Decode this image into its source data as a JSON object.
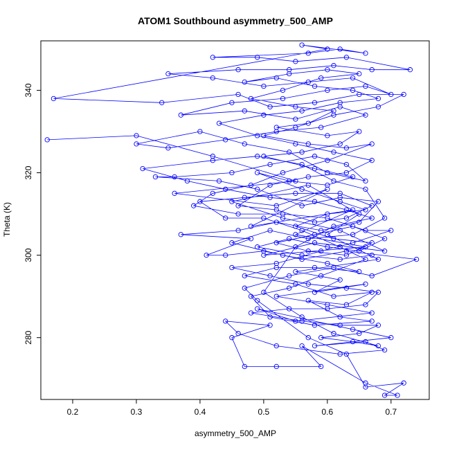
{
  "chart_data": {
    "type": "scatter",
    "style": "points connected by lines (open circles)",
    "title": "ATOM1 Southbound asymmetry_500_AMP",
    "xlabel": "asymmetry_500_AMP",
    "ylabel": "Theta (K)",
    "xlim": [
      0.15,
      0.76
    ],
    "ylim": [
      265,
      352
    ],
    "xticks": [
      "0.2",
      "0.3",
      "0.4",
      "0.5",
      "0.6",
      "0.7"
    ],
    "yticks": [
      "280",
      "300",
      "320",
      "340"
    ],
    "color": "#0000ff",
    "grid": false,
    "legend": "none",
    "series": [
      {
        "points": [
          [
            0.16,
            328
          ],
          [
            0.3,
            329
          ],
          [
            0.42,
            324
          ],
          [
            0.55,
            318
          ],
          [
            0.36,
            315
          ],
          [
            0.52,
            312
          ],
          [
            0.6,
            316
          ],
          [
            0.48,
            307
          ],
          [
            0.64,
            311
          ],
          [
            0.55,
            305
          ],
          [
            0.66,
            302
          ],
          [
            0.5,
            300
          ],
          [
            0.58,
            303
          ],
          [
            0.69,
            301
          ],
          [
            0.62,
            306
          ],
          [
            0.53,
            309
          ],
          [
            0.45,
            313
          ],
          [
            0.57,
            317
          ],
          [
            0.65,
            310
          ],
          [
            0.6,
            305
          ],
          [
            0.68,
            299
          ],
          [
            0.55,
            296
          ],
          [
            0.62,
            294
          ],
          [
            0.58,
            291
          ],
          [
            0.66,
            293
          ],
          [
            0.52,
            290
          ],
          [
            0.6,
            288
          ],
          [
            0.67,
            286
          ],
          [
            0.55,
            284
          ],
          [
            0.49,
            287
          ],
          [
            0.64,
            282
          ],
          [
            0.7,
            280
          ],
          [
            0.58,
            278
          ],
          [
            0.66,
            279
          ],
          [
            0.69,
            277
          ],
          [
            0.62,
            276
          ],
          [
            0.52,
            278
          ],
          [
            0.46,
            281
          ],
          [
            0.44,
            284
          ],
          [
            0.51,
            283
          ],
          [
            0.45,
            280
          ],
          [
            0.47,
            273
          ],
          [
            0.52,
            273
          ],
          [
            0.59,
            273
          ],
          [
            0.56,
            278
          ],
          [
            0.66,
            269
          ],
          [
            0.71,
            266
          ],
          [
            0.69,
            266
          ],
          [
            0.72,
            269
          ],
          [
            0.66,
            268
          ],
          [
            0.63,
            276
          ],
          [
            0.57,
            280
          ],
          [
            0.49,
            289
          ],
          [
            0.47,
            292
          ],
          [
            0.54,
            295
          ],
          [
            0.61,
            297
          ],
          [
            0.67,
            295
          ],
          [
            0.74,
            299
          ],
          [
            0.63,
            301
          ],
          [
            0.56,
            299
          ],
          [
            0.5,
            301
          ],
          [
            0.44,
            300
          ],
          [
            0.41,
            300
          ],
          [
            0.48,
            304
          ],
          [
            0.37,
            305
          ],
          [
            0.46,
            306
          ],
          [
            0.52,
            308
          ],
          [
            0.59,
            306
          ],
          [
            0.65,
            308
          ],
          [
            0.68,
            313
          ],
          [
            0.62,
            314
          ],
          [
            0.56,
            312
          ],
          [
            0.49,
            316
          ],
          [
            0.43,
            318
          ],
          [
            0.33,
            319
          ],
          [
            0.36,
            319
          ],
          [
            0.45,
            320
          ],
          [
            0.51,
            322
          ],
          [
            0.58,
            324
          ],
          [
            0.63,
            322
          ],
          [
            0.66,
            318
          ],
          [
            0.6,
            320
          ],
          [
            0.54,
            325
          ],
          [
            0.47,
            327
          ],
          [
            0.4,
            330
          ],
          [
            0.3,
            327
          ],
          [
            0.35,
            326
          ],
          [
            0.44,
            328
          ],
          [
            0.52,
            330
          ],
          [
            0.59,
            331
          ],
          [
            0.66,
            334
          ],
          [
            0.62,
            336
          ],
          [
            0.55,
            333
          ],
          [
            0.47,
            335
          ],
          [
            0.37,
            334
          ],
          [
            0.45,
            337
          ],
          [
            0.53,
            338
          ],
          [
            0.6,
            340
          ],
          [
            0.66,
            341
          ],
          [
            0.7,
            339
          ],
          [
            0.64,
            343
          ],
          [
            0.57,
            342
          ],
          [
            0.5,
            341
          ],
          [
            0.42,
            343
          ],
          [
            0.35,
            344
          ],
          [
            0.46,
            345
          ],
          [
            0.54,
            345
          ],
          [
            0.61,
            346
          ],
          [
            0.67,
            345
          ],
          [
            0.73,
            345
          ],
          [
            0.63,
            348
          ],
          [
            0.55,
            347
          ],
          [
            0.49,
            348
          ],
          [
            0.42,
            348
          ],
          [
            0.57,
            349
          ],
          [
            0.62,
            350
          ],
          [
            0.66,
            349
          ],
          [
            0.56,
            351
          ],
          [
            0.6,
            350
          ],
          [
            0.17,
            338
          ],
          [
            0.34,
            337
          ],
          [
            0.46,
            339
          ],
          [
            0.51,
            336
          ],
          [
            0.58,
            337
          ],
          [
            0.65,
            339
          ],
          [
            0.72,
            339
          ],
          [
            0.68,
            336
          ],
          [
            0.61,
            334
          ],
          [
            0.55,
            331
          ],
          [
            0.5,
            329
          ],
          [
            0.57,
            327
          ],
          [
            0.63,
            326
          ],
          [
            0.67,
            327
          ],
          [
            0.6,
            323
          ],
          [
            0.53,
            320
          ],
          [
            0.48,
            317
          ],
          [
            0.42,
            315
          ],
          [
            0.39,
            312
          ],
          [
            0.46,
            310
          ],
          [
            0.53,
            310
          ],
          [
            0.6,
            309
          ],
          [
            0.66,
            306
          ],
          [
            0.7,
            306
          ],
          [
            0.64,
            303
          ],
          [
            0.59,
            301
          ],
          [
            0.52,
            298
          ],
          [
            0.45,
            297
          ],
          [
            0.51,
            295
          ],
          [
            0.57,
            293
          ],
          [
            0.63,
            292
          ],
          [
            0.68,
            291
          ],
          [
            0.66,
            288
          ],
          [
            0.6,
            287
          ],
          [
            0.54,
            287
          ],
          [
            0.48,
            286
          ],
          [
            0.56,
            284
          ],
          [
            0.62,
            283
          ],
          [
            0.68,
            283
          ],
          [
            0.65,
            281
          ],
          [
            0.59,
            280
          ],
          [
            0.64,
            279
          ],
          [
            0.68,
            278
          ],
          [
            0.61,
            281
          ],
          [
            0.56,
            285
          ],
          [
            0.5,
            291
          ],
          [
            0.55,
            302
          ],
          [
            0.61,
            307
          ],
          [
            0.67,
            309
          ],
          [
            0.63,
            311
          ],
          [
            0.58,
            313
          ],
          [
            0.51,
            314
          ],
          [
            0.44,
            316
          ],
          [
            0.38,
            318
          ],
          [
            0.31,
            321
          ],
          [
            0.42,
            323
          ],
          [
            0.49,
            324
          ],
          [
            0.56,
            322
          ],
          [
            0.61,
            318
          ],
          [
            0.66,
            316
          ],
          [
            0.69,
            309
          ],
          [
            0.64,
            305
          ],
          [
            0.57,
            304
          ],
          [
            0.51,
            306
          ],
          [
            0.45,
            303
          ],
          [
            0.53,
            300
          ],
          [
            0.6,
            298
          ],
          [
            0.65,
            296
          ],
          [
            0.58,
            297
          ],
          [
            0.52,
            297
          ],
          [
            0.47,
            295
          ],
          [
            0.55,
            293
          ],
          [
            0.61,
            290
          ],
          [
            0.67,
            291
          ],
          [
            0.63,
            288
          ],
          [
            0.57,
            289
          ],
          [
            0.62,
            285
          ],
          [
            0.67,
            284
          ],
          [
            0.58,
            283
          ],
          [
            0.51,
            285
          ],
          [
            0.48,
            290
          ],
          [
            0.54,
            292
          ],
          [
            0.59,
            295
          ],
          [
            0.66,
            299
          ],
          [
            0.62,
            302
          ],
          [
            0.56,
            306
          ],
          [
            0.5,
            309
          ],
          [
            0.44,
            309
          ],
          [
            0.4,
            313
          ],
          [
            0.47,
            314
          ],
          [
            0.55,
            315
          ],
          [
            0.62,
            315
          ],
          [
            0.67,
            312
          ],
          [
            0.63,
            309
          ],
          [
            0.58,
            308
          ],
          [
            0.52,
            311
          ],
          [
            0.46,
            312
          ],
          [
            0.51,
            317
          ],
          [
            0.57,
            319
          ],
          [
            0.63,
            320
          ],
          [
            0.67,
            323
          ],
          [
            0.61,
            325
          ],
          [
            0.55,
            327
          ],
          [
            0.49,
            329
          ],
          [
            0.43,
            332
          ],
          [
            0.5,
            334
          ],
          [
            0.56,
            335
          ],
          [
            0.62,
            337
          ],
          [
            0.68,
            338
          ],
          [
            0.64,
            340
          ],
          [
            0.58,
            341
          ],
          [
            0.52,
            343
          ],
          [
            0.47,
            342
          ],
          [
            0.54,
            344
          ],
          [
            0.6,
            345
          ],
          [
            0.65,
            344
          ],
          [
            0.59,
            343
          ],
          [
            0.53,
            340
          ],
          [
            0.48,
            338
          ],
          [
            0.55,
            336
          ],
          [
            0.61,
            335
          ],
          [
            0.57,
            332
          ],
          [
            0.52,
            331
          ],
          [
            0.6,
            329
          ],
          [
            0.65,
            330
          ],
          [
            0.62,
            327
          ],
          [
            0.56,
            325
          ],
          [
            0.5,
            324
          ],
          [
            0.58,
            321
          ],
          [
            0.64,
            319
          ],
          [
            0.6,
            317
          ],
          [
            0.54,
            318
          ],
          [
            0.49,
            320
          ],
          [
            0.56,
            316
          ],
          [
            0.62,
            313
          ],
          [
            0.66,
            311
          ],
          [
            0.6,
            310
          ],
          [
            0.55,
            307
          ],
          [
            0.61,
            304
          ],
          [
            0.67,
            303
          ],
          [
            0.63,
            300
          ],
          [
            0.57,
            301
          ],
          [
            0.52,
            303
          ],
          [
            0.58,
            305
          ],
          [
            0.64,
            307
          ],
          [
            0.69,
            304
          ],
          [
            0.65,
            301
          ],
          [
            0.6,
            302
          ],
          [
            0.54,
            304
          ],
          [
            0.49,
            302
          ],
          [
            0.56,
            300
          ],
          [
            0.62,
            299
          ],
          [
            0.67,
            300
          ]
        ]
      }
    ]
  }
}
